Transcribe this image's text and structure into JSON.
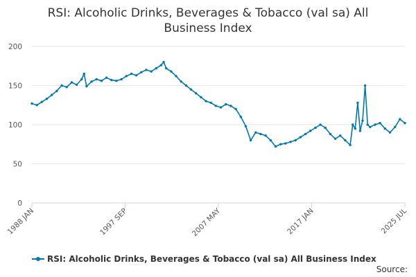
{
  "chart_data": {
    "type": "line",
    "title_lines": [
      "RSI: Alcoholic Drinks, Beverages & Tobacco (val sa) All",
      "Business Index"
    ],
    "x_tick_labels": [
      "1988 JAN",
      "1997 SEP",
      "2007 MAY",
      "2017 JAN",
      "2025 JUL"
    ],
    "x_range": [
      "1988-01",
      "2025-07"
    ],
    "ylim": [
      0,
      200
    ],
    "y_ticks": [
      0,
      50,
      100,
      150,
      200
    ],
    "grid": true,
    "legend_position": "bottom",
    "series": [
      {
        "name": "RSI: Alcoholic Drinks, Beverages & Tobacco (val sa) All Business Index",
        "color": "#0077b3",
        "x": [
          "1988-01",
          "1988-07",
          "1989-01",
          "1989-07",
          "1990-01",
          "1990-07",
          "1991-01",
          "1991-07",
          "1992-01",
          "1992-07",
          "1993-01",
          "1993-04",
          "1993-07",
          "1994-01",
          "1994-07",
          "1995-01",
          "1995-07",
          "1996-01",
          "1996-07",
          "1997-01",
          "1997-07",
          "1998-01",
          "1998-07",
          "1999-01",
          "1999-07",
          "2000-01",
          "2000-07",
          "2001-01",
          "2001-04",
          "2001-07",
          "2002-01",
          "2002-07",
          "2003-01",
          "2003-07",
          "2004-01",
          "2004-07",
          "2005-01",
          "2005-07",
          "2006-01",
          "2006-07",
          "2007-01",
          "2007-07",
          "2008-01",
          "2008-07",
          "2009-01",
          "2009-07",
          "2010-01",
          "2010-07",
          "2011-01",
          "2011-07",
          "2012-01",
          "2012-07",
          "2013-01",
          "2013-07",
          "2014-01",
          "2014-07",
          "2015-01",
          "2015-07",
          "2016-01",
          "2016-07",
          "2017-01",
          "2017-07",
          "2018-01",
          "2018-07",
          "2019-01",
          "2019-07",
          "2020-01",
          "2020-04",
          "2020-07",
          "2020-10",
          "2021-01",
          "2021-04",
          "2021-07",
          "2021-10",
          "2022-01",
          "2022-07",
          "2023-01",
          "2023-07",
          "2024-01",
          "2024-07",
          "2025-01",
          "2025-07"
        ],
        "values": [
          127,
          125,
          129,
          133,
          138,
          143,
          150,
          148,
          154,
          151,
          158,
          165,
          149,
          155,
          158,
          156,
          160,
          157,
          156,
          158,
          162,
          165,
          163,
          167,
          170,
          168,
          172,
          176,
          180,
          172,
          168,
          162,
          155,
          150,
          145,
          140,
          135,
          130,
          128,
          124,
          122,
          126,
          124,
          120,
          110,
          98,
          80,
          90,
          88,
          86,
          80,
          72,
          75,
          76,
          78,
          80,
          84,
          88,
          92,
          96,
          100,
          96,
          88,
          82,
          86,
          80,
          74,
          100,
          95,
          128,
          92,
          105,
          150,
          100,
          97,
          100,
          102,
          95,
          90,
          97,
          107,
          102
        ]
      }
    ]
  },
  "source_label": "Source:"
}
